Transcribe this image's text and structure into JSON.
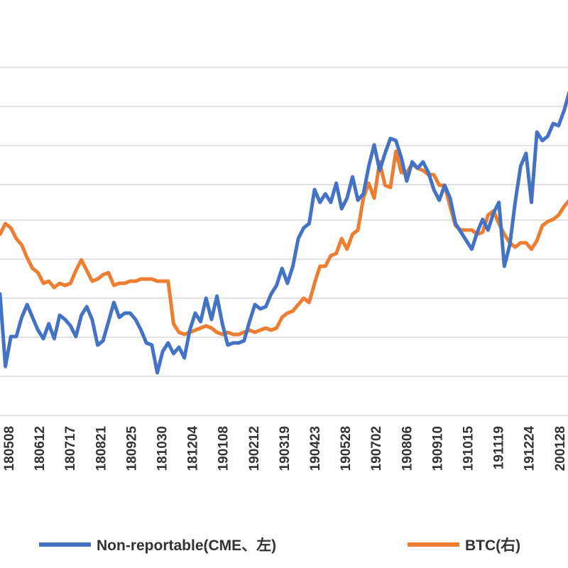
{
  "chart_data": {
    "type": "line",
    "grid": true,
    "legend_position": "bottom",
    "x_ticks": [
      "180508",
      "180612",
      "180717",
      "180821",
      "180925",
      "181030",
      "181204",
      "190108",
      "190212",
      "190319",
      "190423",
      "190528",
      "190702",
      "190806",
      "190910",
      "191015",
      "191119",
      "191224",
      "200128"
    ],
    "series": [
      {
        "name": "Non-reportable(CME、左)",
        "color": "#4472c4",
        "axis": "left",
        "values": [
          0.47,
          0.13,
          0.27,
          0.27,
          0.36,
          0.42,
          0.36,
          0.3,
          0.26,
          0.33,
          0.26,
          0.37,
          0.35,
          0.32,
          0.27,
          0.37,
          0.41,
          0.35,
          0.23,
          0.25,
          0.34,
          0.43,
          0.36,
          0.38,
          0.38,
          0.35,
          0.3,
          0.24,
          0.23,
          0.1,
          0.2,
          0.24,
          0.19,
          0.22,
          0.17,
          0.3,
          0.38,
          0.34,
          0.45,
          0.35,
          0.46,
          0.33,
          0.23,
          0.24,
          0.24,
          0.25,
          0.34,
          0.42,
          0.4,
          0.41,
          0.47,
          0.51,
          0.59,
          0.52,
          0.6,
          0.73,
          0.78,
          0.8,
          0.96,
          0.9,
          0.94,
          0.9,
          0.99,
          0.87,
          0.92,
          1.02,
          0.91,
          0.94,
          1.07,
          1.17,
          1.05,
          1.13,
          1.2,
          1.19,
          1.11,
          1.0,
          1.09,
          1.06,
          1.09,
          1.04,
          0.96,
          0.91,
          0.98,
          0.92,
          0.8,
          0.76,
          0.72,
          0.68,
          0.76,
          0.82,
          0.77,
          0.85,
          0.9,
          0.6,
          0.7,
          0.9,
          1.07,
          1.13,
          0.9,
          1.23,
          1.19,
          1.21,
          1.27,
          1.26,
          1.33,
          1.42
        ]
      },
      {
        "name": "BTC(右)",
        "color": "#ed7d31",
        "axis": "right",
        "values": [
          0.75,
          0.8,
          0.78,
          0.73,
          0.7,
          0.64,
          0.59,
          0.57,
          0.52,
          0.53,
          0.5,
          0.52,
          0.51,
          0.52,
          0.58,
          0.63,
          0.58,
          0.53,
          0.54,
          0.56,
          0.57,
          0.51,
          0.52,
          0.52,
          0.53,
          0.53,
          0.54,
          0.54,
          0.54,
          0.53,
          0.53,
          0.53,
          0.33,
          0.29,
          0.28,
          0.29,
          0.3,
          0.31,
          0.32,
          0.31,
          0.29,
          0.28,
          0.29,
          0.28,
          0.28,
          0.29,
          0.3,
          0.29,
          0.3,
          0.31,
          0.3,
          0.31,
          0.36,
          0.38,
          0.39,
          0.42,
          0.45,
          0.43,
          0.52,
          0.6,
          0.6,
          0.65,
          0.66,
          0.73,
          0.68,
          0.75,
          0.77,
          0.92,
          0.99,
          0.92,
          1.09,
          0.98,
          0.97,
          1.14,
          1.04,
          1.04,
          1.08,
          1.06,
          1.05,
          1.03,
          1.03,
          0.98,
          0.98,
          0.88,
          0.79,
          0.77,
          0.77,
          0.77,
          0.75,
          0.76,
          0.84,
          0.86,
          0.8,
          0.75,
          0.71,
          0.69,
          0.71,
          0.71,
          0.68,
          0.72,
          0.79,
          0.81,
          0.82,
          0.84,
          0.88,
          0.91
        ]
      }
    ]
  }
}
